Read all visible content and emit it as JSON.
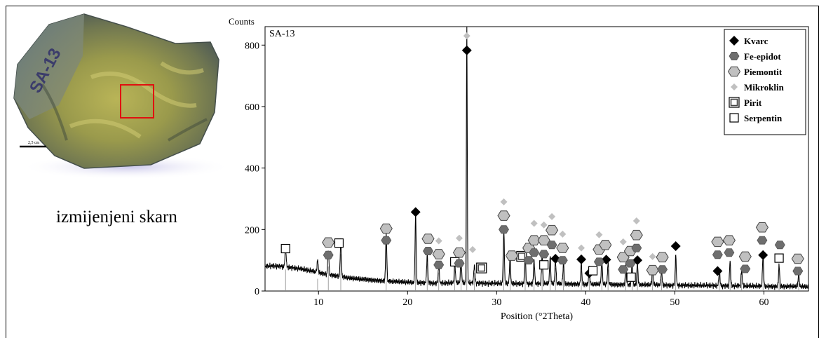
{
  "photo": {
    "label": "SA-13",
    "scale_label": "2,5 cm"
  },
  "caption": "izmijenjeni skarn",
  "colors": {
    "marker_light": "#c0c0c0",
    "marker_dark": "#6e6e6e",
    "selection_box": "#e01010"
  },
  "chart_data": {
    "type": "line",
    "sample": "SA-13",
    "ylabel": "Counts",
    "xlabel": "Position (°2Theta)",
    "xlim": [
      4,
      65
    ],
    "ylim": [
      0,
      860
    ],
    "xticks": [
      10,
      20,
      30,
      40,
      50,
      60
    ],
    "yticks": [
      0,
      200,
      400,
      600,
      800
    ],
    "legend_position": "top-right",
    "legend": [
      {
        "name": "Kvarc",
        "marker": "diamond-black"
      },
      {
        "name": "Fe-epidot",
        "marker": "hexagon-dark"
      },
      {
        "name": "Piemontit",
        "marker": "hexagon-light"
      },
      {
        "name": "Mikroklin",
        "marker": "diamond-light"
      },
      {
        "name": "Pirit",
        "marker": "square-double"
      },
      {
        "name": "Serpentin",
        "marker": "square-open"
      }
    ],
    "series": [
      {
        "type": "xrd_pattern",
        "x": [
          4,
          5,
          6,
          7,
          8,
          9,
          10,
          11,
          12,
          13,
          14,
          15,
          16,
          17,
          18,
          19,
          20,
          21,
          22,
          23,
          24,
          25,
          26,
          27,
          28,
          29,
          30,
          31,
          32,
          33,
          34,
          35,
          36,
          37,
          38,
          39,
          40,
          41,
          42,
          43,
          44,
          45,
          46,
          47,
          48,
          49,
          50,
          51,
          52,
          53,
          54,
          55,
          56,
          57,
          58,
          59,
          60,
          61,
          62,
          63,
          64,
          65
        ],
        "y": [
          80,
          82,
          80,
          76,
          72,
          66,
          60,
          54,
          50,
          44,
          40,
          38,
          36,
          34,
          32,
          30,
          28,
          27,
          27,
          26,
          26,
          26,
          27,
          27,
          26,
          25,
          25,
          24,
          24,
          24,
          24,
          24,
          24,
          24,
          23,
          23,
          22,
          22,
          22,
          21,
          21,
          21,
          20,
          20,
          20,
          19,
          19,
          19,
          18,
          18,
          18,
          17,
          17,
          17,
          16,
          16,
          16,
          15,
          15,
          15,
          14,
          14
        ]
      },
      {
        "type": "peaks",
        "x": [
          6.3,
          9.9,
          11.1,
          12.5,
          17.6,
          20.9,
          22.2,
          23.5,
          25.3,
          26.0,
          26.65,
          27.5,
          30.8,
          31.5,
          33.2,
          34.2,
          35.1,
          36.0,
          36.6,
          37.5,
          39.5,
          40.4,
          41.8,
          42.5,
          44.5,
          45.2,
          45.8,
          47.5,
          48.5,
          50.1,
          55.0,
          56.2,
          57.5,
          59.9,
          61.7,
          63.9
        ],
        "y": [
          70,
          40,
          80,
          120,
          160,
          220,
          90,
          60,
          70,
          80,
          860,
          60,
          180,
          90,
          95,
          80,
          100,
          90,
          75,
          70,
          65,
          55,
          80,
          70,
          60,
          80,
          70,
          55,
          50,
          95,
          50,
          80,
          50,
          100,
          70,
          45
        ]
      }
    ],
    "annotations": [
      {
        "marker": "diamond-black",
        "x": 26.65,
        "y": 783
      },
      {
        "marker": "diamond-light",
        "x": 26.65,
        "y": 830
      },
      {
        "marker": "diamond-black",
        "x": 20.9,
        "y": 257
      },
      {
        "marker": "diamond-black",
        "x": 36.6,
        "y": 105
      },
      {
        "marker": "diamond-black",
        "x": 39.5,
        "y": 103
      },
      {
        "marker": "diamond-black",
        "x": 40.4,
        "y": 58
      },
      {
        "marker": "diamond-black",
        "x": 42.3,
        "y": 102
      },
      {
        "marker": "diamond-black",
        "x": 45.8,
        "y": 100
      },
      {
        "marker": "diamond-black",
        "x": 50.1,
        "y": 146
      },
      {
        "marker": "diamond-black",
        "x": 54.8,
        "y": 65
      },
      {
        "marker": "diamond-black",
        "x": 59.9,
        "y": 117
      },
      {
        "marker": "square-open",
        "x": 6.3,
        "y": 138
      },
      {
        "marker": "square-open",
        "x": 12.3,
        "y": 156
      },
      {
        "marker": "square-open",
        "x": 25.3,
        "y": 95
      },
      {
        "marker": "square-open",
        "x": 35.3,
        "y": 85
      },
      {
        "marker": "square-open",
        "x": 40.8,
        "y": 66
      },
      {
        "marker": "square-open",
        "x": 45.1,
        "y": 45
      },
      {
        "marker": "square-open",
        "x": 61.7,
        "y": 107
      },
      {
        "marker": "square-double",
        "x": 28.3,
        "y": 75
      },
      {
        "marker": "square-double",
        "x": 32.8,
        "y": 113
      },
      {
        "marker": "hexagon-dark",
        "x": 11.1,
        "y": 117
      },
      {
        "marker": "hexagon-light",
        "x": 11.1,
        "y": 158
      },
      {
        "marker": "hexagon-dark",
        "x": 17.6,
        "y": 165
      },
      {
        "marker": "hexagon-light",
        "x": 17.6,
        "y": 203
      },
      {
        "marker": "hexagon-dark",
        "x": 22.3,
        "y": 130
      },
      {
        "marker": "hexagon-light",
        "x": 22.3,
        "y": 170
      },
      {
        "marker": "hexagon-dark",
        "x": 23.5,
        "y": 85
      },
      {
        "marker": "hexagon-light",
        "x": 23.5,
        "y": 120
      },
      {
        "marker": "diamond-light",
        "x": 23.5,
        "y": 163
      },
      {
        "marker": "hexagon-dark",
        "x": 25.8,
        "y": 90
      },
      {
        "marker": "hexagon-light",
        "x": 25.8,
        "y": 125
      },
      {
        "marker": "diamond-light",
        "x": 25.8,
        "y": 172
      },
      {
        "marker": "diamond-light",
        "x": 27.3,
        "y": 135
      },
      {
        "marker": "hexagon-dark",
        "x": 30.8,
        "y": 200
      },
      {
        "marker": "hexagon-light",
        "x": 30.8,
        "y": 245
      },
      {
        "marker": "diamond-light",
        "x": 30.8,
        "y": 290
      },
      {
        "marker": "hexagon-light",
        "x": 31.7,
        "y": 115
      },
      {
        "marker": "hexagon-dark",
        "x": 33.6,
        "y": 100
      },
      {
        "marker": "hexagon-light",
        "x": 33.6,
        "y": 140
      },
      {
        "marker": "hexagon-dark",
        "x": 34.2,
        "y": 125
      },
      {
        "marker": "hexagon-light",
        "x": 34.2,
        "y": 165
      },
      {
        "marker": "diamond-light",
        "x": 34.2,
        "y": 220
      },
      {
        "marker": "hexagon-dark",
        "x": 35.3,
        "y": 120
      },
      {
        "marker": "hexagon-light",
        "x": 35.3,
        "y": 165
      },
      {
        "marker": "diamond-light",
        "x": 35.3,
        "y": 215
      },
      {
        "marker": "hexagon-dark",
        "x": 36.2,
        "y": 150
      },
      {
        "marker": "hexagon-light",
        "x": 36.2,
        "y": 198
      },
      {
        "marker": "diamond-light",
        "x": 36.2,
        "y": 242
      },
      {
        "marker": "hexagon-dark",
        "x": 37.4,
        "y": 100
      },
      {
        "marker": "hexagon-light",
        "x": 37.4,
        "y": 140
      },
      {
        "marker": "diamond-light",
        "x": 37.4,
        "y": 185
      },
      {
        "marker": "diamond-light",
        "x": 39.5,
        "y": 140
      },
      {
        "marker": "hexagon-dark",
        "x": 41.5,
        "y": 95
      },
      {
        "marker": "hexagon-light",
        "x": 41.5,
        "y": 135
      },
      {
        "marker": "diamond-light",
        "x": 41.5,
        "y": 183
      },
      {
        "marker": "hexagon-light",
        "x": 42.2,
        "y": 150
      },
      {
        "marker": "hexagon-dark",
        "x": 44.2,
        "y": 70
      },
      {
        "marker": "hexagon-light",
        "x": 44.2,
        "y": 110
      },
      {
        "marker": "diamond-light",
        "x": 44.2,
        "y": 160
      },
      {
        "marker": "hexagon-dark",
        "x": 45.0,
        "y": 90
      },
      {
        "marker": "hexagon-light",
        "x": 45.0,
        "y": 130
      },
      {
        "marker": "hexagon-dark",
        "x": 45.7,
        "y": 140
      },
      {
        "marker": "hexagon-light",
        "x": 45.7,
        "y": 182
      },
      {
        "marker": "diamond-light",
        "x": 45.7,
        "y": 228
      },
      {
        "marker": "hexagon-light",
        "x": 47.5,
        "y": 68
      },
      {
        "marker": "diamond-light",
        "x": 47.5,
        "y": 112
      },
      {
        "marker": "hexagon-dark",
        "x": 48.6,
        "y": 70
      },
      {
        "marker": "hexagon-light",
        "x": 48.6,
        "y": 110
      },
      {
        "marker": "hexagon-dark",
        "x": 54.8,
        "y": 118
      },
      {
        "marker": "hexagon-light",
        "x": 54.8,
        "y": 160
      },
      {
        "marker": "hexagon-dark",
        "x": 56.1,
        "y": 125
      },
      {
        "marker": "hexagon-light",
        "x": 56.1,
        "y": 165
      },
      {
        "marker": "hexagon-dark",
        "x": 57.9,
        "y": 72
      },
      {
        "marker": "hexagon-light",
        "x": 57.9,
        "y": 112
      },
      {
        "marker": "hexagon-dark",
        "x": 59.8,
        "y": 165
      },
      {
        "marker": "hexagon-light",
        "x": 59.8,
        "y": 207
      },
      {
        "marker": "hexagon-dark",
        "x": 61.8,
        "y": 150
      },
      {
        "marker": "hexagon-dark",
        "x": 63.8,
        "y": 65
      },
      {
        "marker": "hexagon-light",
        "x": 63.8,
        "y": 105
      }
    ]
  }
}
